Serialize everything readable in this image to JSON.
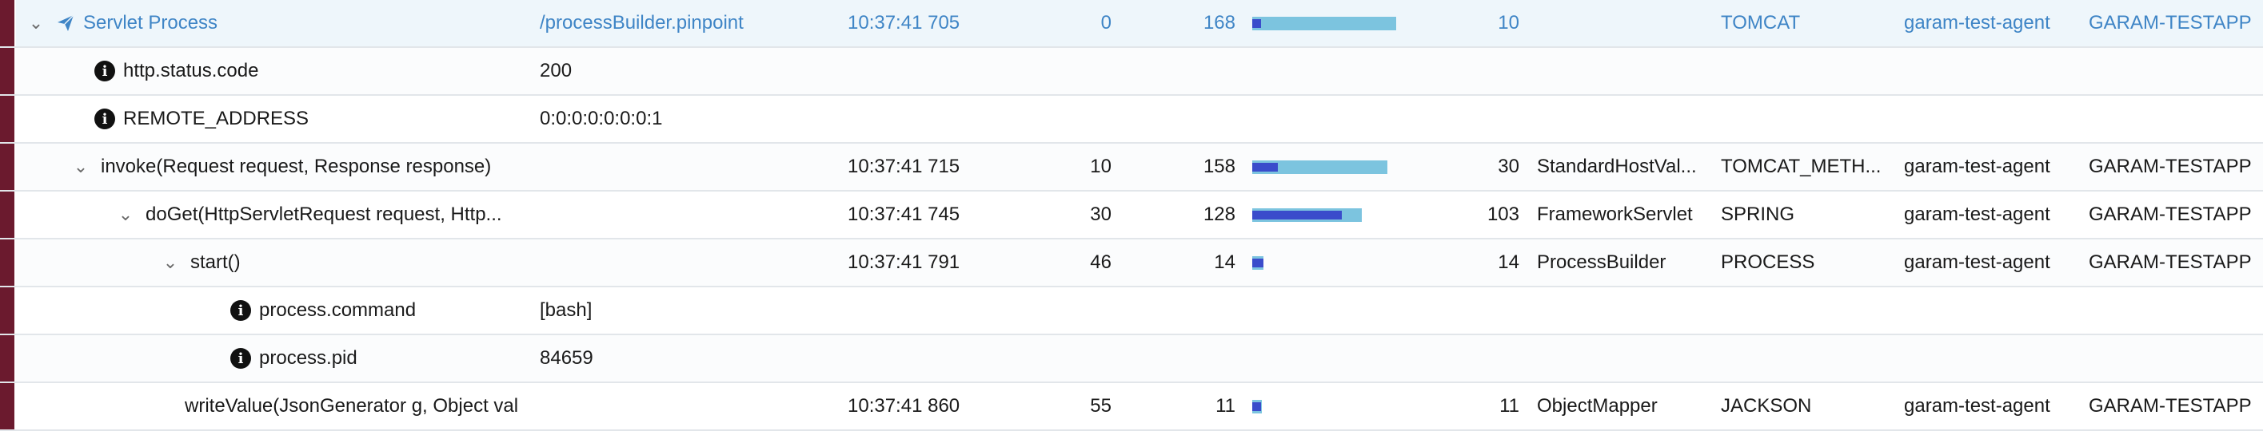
{
  "colors": {
    "stripe": "#6b1a2e",
    "link": "#3f85c6",
    "bar_light": "#7cc4df",
    "bar_dark": "#3a4ccb"
  },
  "rows": [
    {
      "method": "Servlet Process",
      "argument": "/processBuilder.pinpoint",
      "start_time": "10:37:41 705",
      "gap": "0",
      "exec_ms": "168",
      "self_ms": "10",
      "class": "",
      "api_type": "TOMCAT",
      "agent": "garam-test-agent",
      "application": "GARAM-TESTAPP",
      "bar": {
        "total": 1.0,
        "self": 0.06
      }
    },
    {
      "method": "http.status.code",
      "argument": "200"
    },
    {
      "method": "REMOTE_ADDRESS",
      "argument": "0:0:0:0:0:0:0:1"
    },
    {
      "method": "invoke(Request request, Response response)",
      "argument": "",
      "start_time": "10:37:41 715",
      "gap": "10",
      "exec_ms": "158",
      "self_ms": "30",
      "class": "StandardHostVal...",
      "api_type": "TOMCAT_METH...",
      "agent": "garam-test-agent",
      "application": "GARAM-TESTAPP",
      "bar": {
        "total": 0.94,
        "self": 0.18
      }
    },
    {
      "method": "doGet(HttpServletRequest request, Http...",
      "argument": "",
      "start_time": "10:37:41 745",
      "gap": "30",
      "exec_ms": "128",
      "self_ms": "103",
      "class": "FrameworkServlet",
      "api_type": "SPRING",
      "agent": "garam-test-agent",
      "application": "GARAM-TESTAPP",
      "bar": {
        "total": 0.76,
        "self": 0.62
      }
    },
    {
      "method": "start()",
      "argument": "",
      "start_time": "10:37:41 791",
      "gap": "46",
      "exec_ms": "14",
      "self_ms": "14",
      "class": "ProcessBuilder",
      "api_type": "PROCESS",
      "agent": "garam-test-agent",
      "application": "GARAM-TESTAPP",
      "bar": {
        "total": 0.08,
        "self": 0.08
      }
    },
    {
      "method": "process.command",
      "argument": "[bash]"
    },
    {
      "method": "process.pid",
      "argument": "84659"
    },
    {
      "method": "writeValue(JsonGenerator g, Object val",
      "argument": "",
      "start_time": "10:37:41 860",
      "gap": "55",
      "exec_ms": "11",
      "self_ms": "11",
      "class": "ObjectMapper",
      "api_type": "JACKSON",
      "agent": "garam-test-agent",
      "application": "GARAM-TESTAPP",
      "bar": {
        "total": 0.06,
        "self": 0.06
      }
    }
  ]
}
